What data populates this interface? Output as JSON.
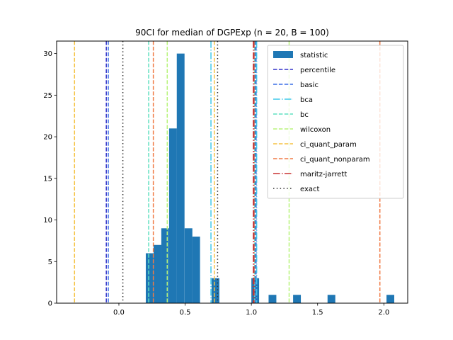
{
  "chart_data": {
    "type": "bar",
    "title": "90CI for median of DGPExp (n = 20, B = 100)",
    "xlabel": "",
    "ylabel": "",
    "xlim": [
      -0.47,
      2.18
    ],
    "ylim": [
      0,
      31.5
    ],
    "xticks": [
      0.0,
      0.5,
      1.0,
      1.5,
      2.0
    ],
    "xtick_labels": [
      "0.0",
      "0.5",
      "1.0",
      "1.5",
      "2.0"
    ],
    "yticks": [
      0,
      5,
      10,
      15,
      20,
      25,
      30
    ],
    "ytick_labels": [
      "0",
      "5",
      "10",
      "15",
      "20",
      "25",
      "30"
    ],
    "grid": false,
    "legend_position": "top-right",
    "histogram": {
      "name": "statistic",
      "color": "#1f77b4",
      "bin_width": 0.0585,
      "bins": [
        {
          "x": 0.203,
          "count": 6
        },
        {
          "x": 0.262,
          "count": 7
        },
        {
          "x": 0.32,
          "count": 9
        },
        {
          "x": 0.379,
          "count": 21
        },
        {
          "x": 0.437,
          "count": 30
        },
        {
          "x": 0.496,
          "count": 9
        },
        {
          "x": 0.554,
          "count": 8
        },
        {
          "x": 0.7,
          "count": 3
        },
        {
          "x": 1.0,
          "count": 3
        },
        {
          "x": 1.13,
          "count": 1
        },
        {
          "x": 1.315,
          "count": 1
        },
        {
          "x": 1.575,
          "count": 1
        },
        {
          "x": 2.02,
          "count": 1
        }
      ]
    },
    "interval_lines": [
      {
        "name": "percentile",
        "color": "#3232c8",
        "dash": "dashed",
        "lower": -0.095,
        "upper": 1.035
      },
      {
        "name": "basic",
        "color": "#3a6fe6",
        "dash": "dashed",
        "lower": -0.08,
        "upper": 1.03
      },
      {
        "name": "bca",
        "color": "#3ec8ea",
        "dash": "dashdot",
        "lower": 0.695,
        "upper": 1.04
      },
      {
        "name": "bc",
        "color": "#5ee0c0",
        "dash": "dashed",
        "lower": 0.225,
        "upper": 1.025
      },
      {
        "name": "wilcoxon",
        "color": "#b8f47a",
        "dash": "dashed",
        "lower": 0.365,
        "upper": 1.285
      },
      {
        "name": "ci_quant_param",
        "color": "#f5c242",
        "dash": "dashed",
        "lower": -0.335,
        "upper": 0.72
      },
      {
        "name": "ci_quant_nonparam",
        "color": "#f07a45",
        "dash": "dashed",
        "lower": 0.26,
        "upper": 1.97
      },
      {
        "name": "maritz-jarrett",
        "color": "#c83232",
        "dash": "dashdot",
        "lower": 1.015,
        "upper": 1.02
      },
      {
        "name": "exact",
        "color": "#303030",
        "dash": "dotted",
        "lower": 0.03,
        "upper": 0.745
      }
    ]
  }
}
